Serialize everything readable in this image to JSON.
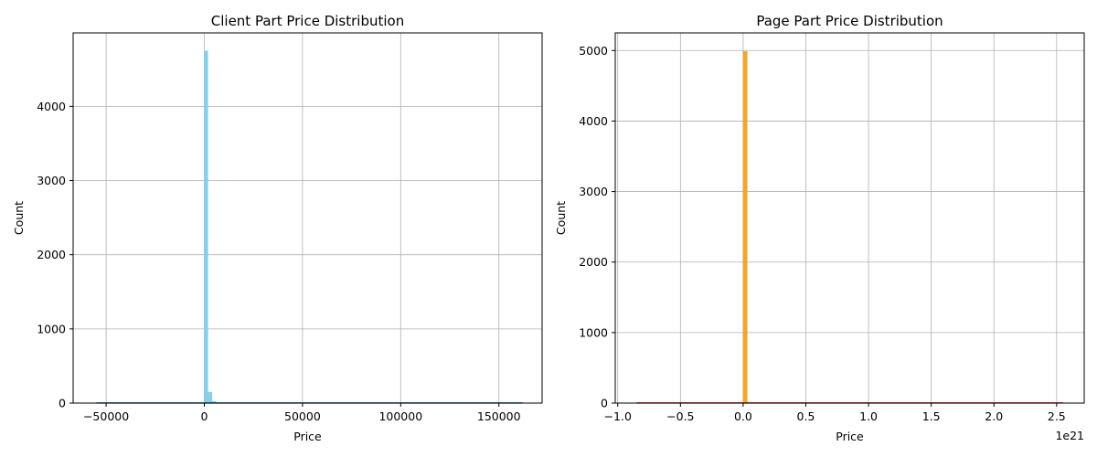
{
  "chart_data": [
    {
      "type": "histogram",
      "title": "Client Part Price Distribution",
      "xlabel": "Price",
      "ylabel": "Count",
      "x_offset_label": "",
      "xlim": [
        -66800,
        172000
      ],
      "ylim": [
        0,
        4990
      ],
      "xticks": [
        -50000,
        0,
        50000,
        100000,
        150000
      ],
      "xtick_labels": [
        "−50000",
        "0",
        "50000",
        "100000",
        "150000"
      ],
      "yticks": [
        0,
        1000,
        2000,
        3000,
        4000
      ],
      "ytick_labels": [
        "0",
        "1000",
        "2000",
        "3000",
        "4000"
      ],
      "grid": true,
      "bar_color": "#87ceeb",
      "kde_color": "#1f77b4",
      "bars": [
        {
          "x0": -200,
          "x1": 1900,
          "count": 4750
        },
        {
          "x0": 1900,
          "x1": 4000,
          "count": 150
        },
        {
          "x0": 4000,
          "x1": 6100,
          "count": 25
        },
        {
          "x0": 6100,
          "x1": 8200,
          "count": 8
        }
      ],
      "baseline_line": {
        "x0": -55000,
        "x1": 162000,
        "y": 2
      }
    },
    {
      "type": "histogram",
      "title": "Page Part Price Distribution",
      "xlabel": "Price",
      "ylabel": "Count",
      "x_offset_label": "1e21",
      "xlim": [
        -1.02,
        2.72
      ],
      "ylim": [
        0,
        5250
      ],
      "xticks": [
        -1.0,
        -0.5,
        0.0,
        0.5,
        1.0,
        1.5,
        2.0,
        2.5
      ],
      "xtick_labels": [
        "−1.0",
        "−0.5",
        "0.0",
        "0.5",
        "1.0",
        "1.5",
        "2.0",
        "2.5"
      ],
      "yticks": [
        0,
        1000,
        2000,
        3000,
        4000,
        5000
      ],
      "ytick_labels": [
        "0",
        "1000",
        "2000",
        "3000",
        "4000",
        "5000"
      ],
      "grid": true,
      "bar_color": "#f5a623",
      "kde_color": "#d62728",
      "bars": [
        {
          "x0": 0.0,
          "x1": 0.034,
          "count": 4990
        }
      ],
      "baseline_line": {
        "x0": -0.85,
        "x1": 2.55,
        "y": 2
      }
    }
  ]
}
